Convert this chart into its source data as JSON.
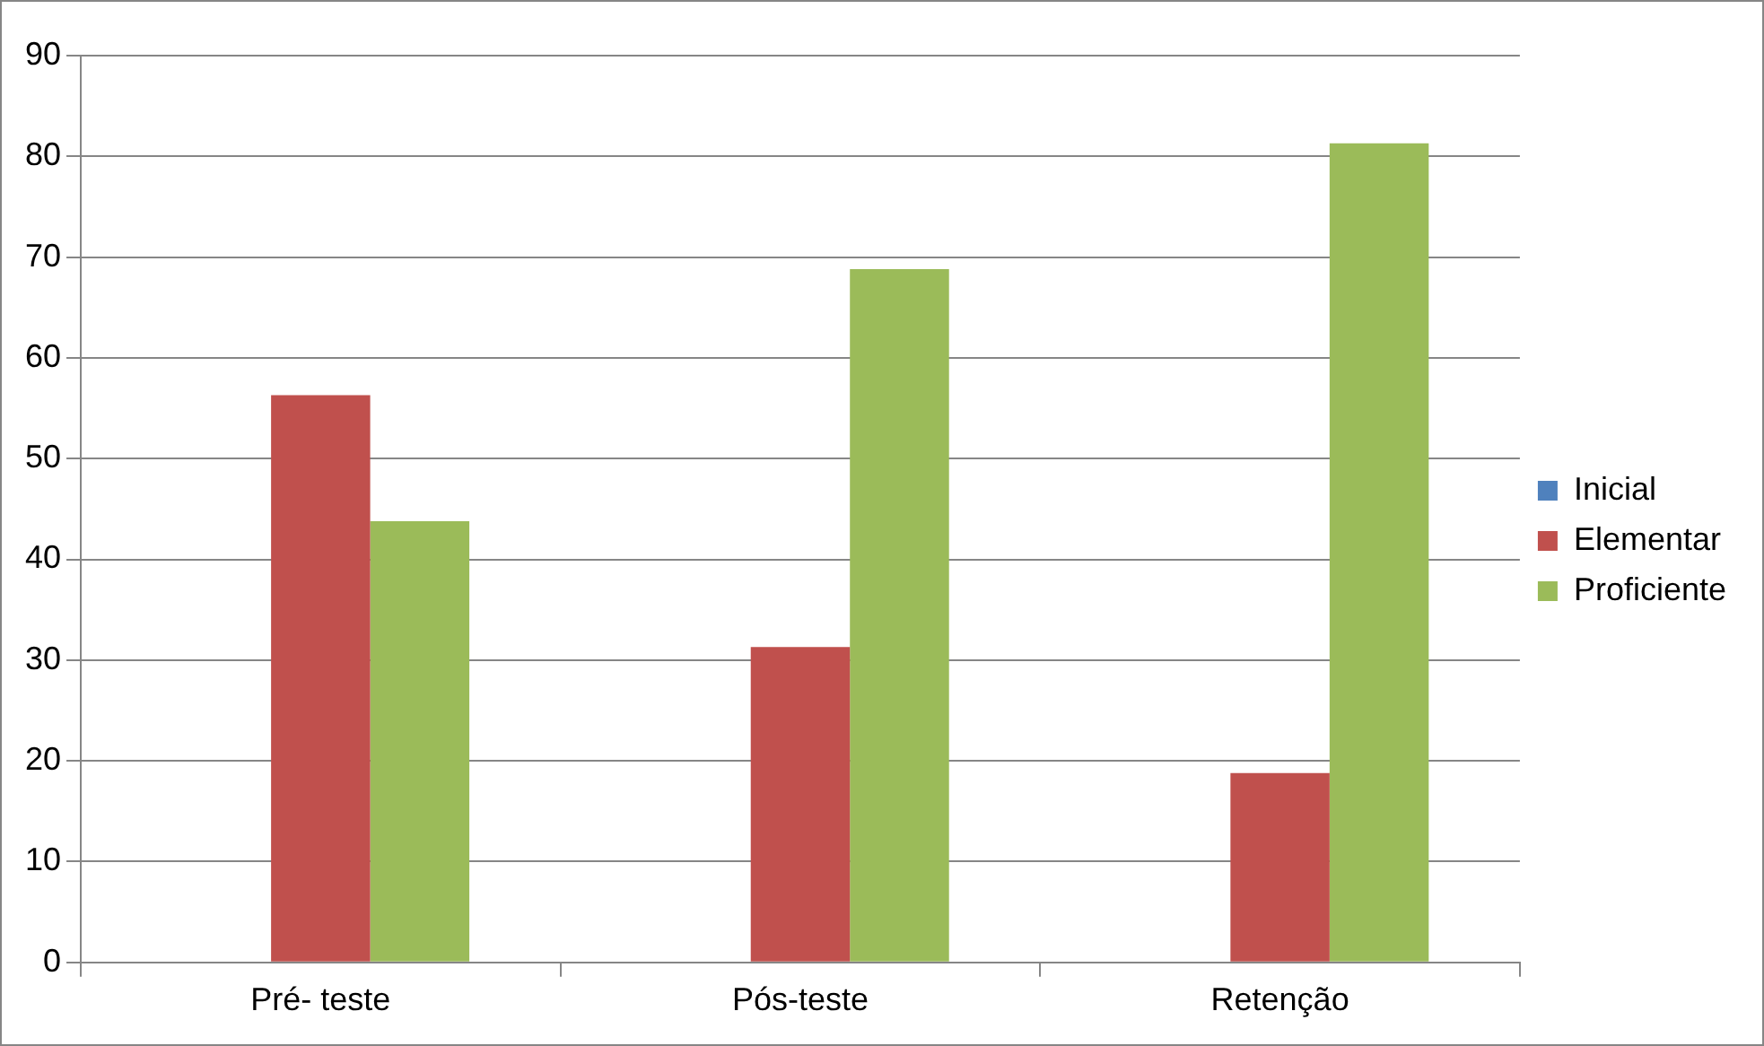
{
  "chart_data": {
    "type": "bar",
    "categories": [
      "Pré- teste",
      "Pós-teste",
      "Retenção"
    ],
    "series": [
      {
        "name": "Inicial",
        "color": "#4f81bd",
        "values": [
          0,
          0,
          0
        ]
      },
      {
        "name": "Elementar",
        "color": "#c0504d",
        "values": [
          56.3,
          31.3,
          18.8
        ]
      },
      {
        "name": "Proficiente",
        "color": "#9bbb59",
        "values": [
          43.8,
          68.8,
          81.3
        ]
      }
    ],
    "ylim": [
      0,
      90
    ],
    "yticks": [
      0,
      10,
      20,
      30,
      40,
      50,
      60,
      70,
      80,
      90
    ],
    "grid": "y",
    "legend": "right"
  }
}
